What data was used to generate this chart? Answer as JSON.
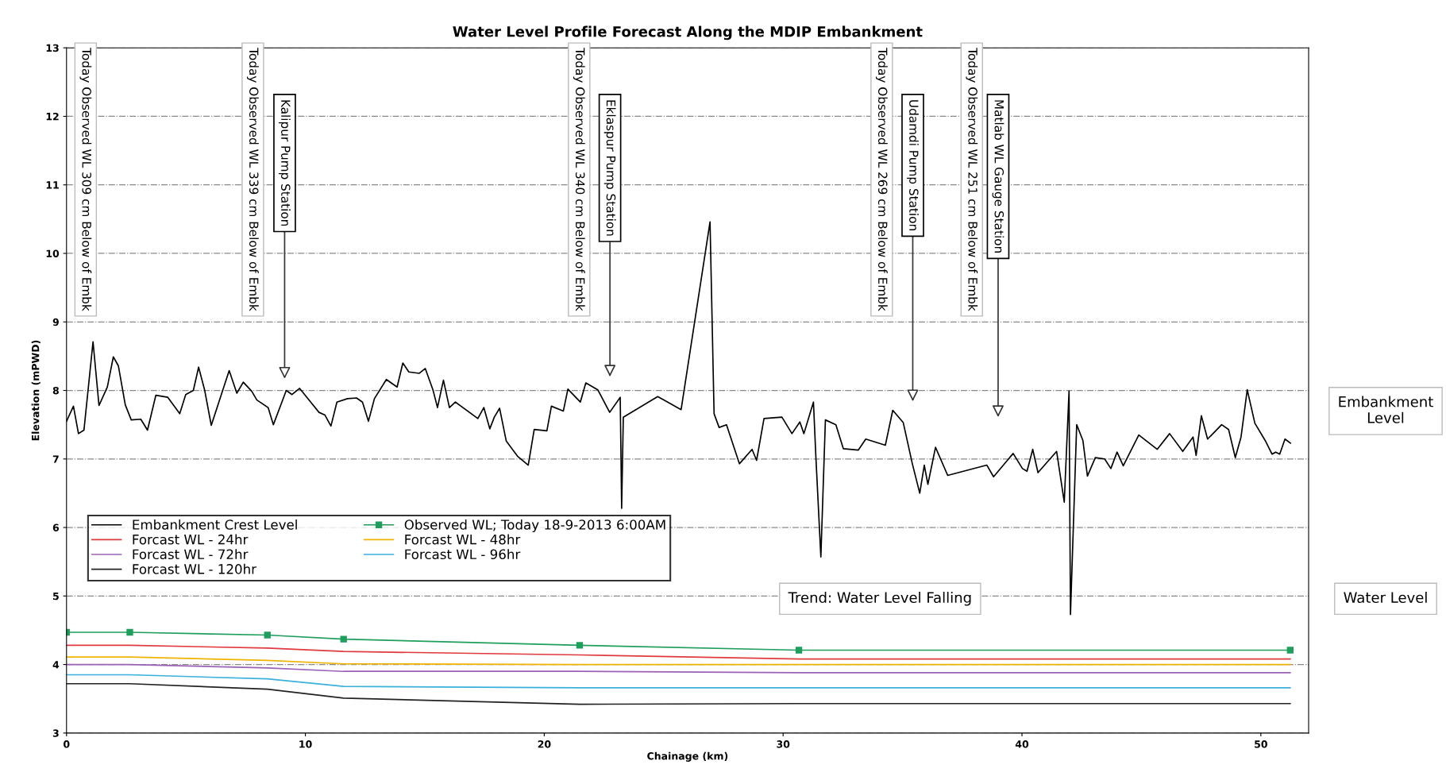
{
  "chart_data": {
    "type": "line",
    "title": "Water Level Profile Forecast Along the MDIP Embankment",
    "xlabel": "Chainage (km)",
    "ylabel": "Elevation (mPWD)",
    "xlim": [
      0,
      52
    ],
    "xticks": [
      0,
      10,
      20,
      30,
      40,
      50
    ],
    "ylim": [
      3,
      13
    ],
    "yticks": [
      3,
      4,
      5,
      6,
      7,
      8,
      9,
      10,
      11,
      12,
      13
    ],
    "grid": "y",
    "legend": "left",
    "line_style": "solid",
    "series": [
      {
        "name": "Embankment Crest Level",
        "color": "#000000",
        "x": [
          0,
          0.29,
          0.5,
          0.73,
          1.11,
          1.36,
          1.71,
          1.96,
          2.17,
          2.46,
          2.71,
          3.11,
          3.39,
          3.74,
          4.24,
          4.74,
          4.99,
          5.31,
          5.53,
          5.78,
          6.06,
          6.81,
          7.13,
          7.4,
          7.75,
          7.97,
          8.44,
          8.66,
          9.2,
          9.44,
          9.76,
          10.57,
          10.82,
          11.07,
          11.32,
          11.76,
          12.14,
          12.39,
          12.64,
          12.89,
          13.39,
          13.84,
          14.08,
          14.33,
          14.77,
          15.02,
          15.34,
          15.53,
          15.78,
          16.03,
          16.28,
          17.22,
          17.47,
          17.72,
          17.91,
          18.13,
          18.41,
          18.88,
          19.33,
          19.58,
          20.11,
          20.3,
          20.8,
          20.99,
          21.51,
          21.74,
          22.24,
          22.74,
          23.18,
          23.24,
          23.31,
          24.75,
          25.73,
          26.94,
          27.11,
          27.32,
          27.63,
          28.17,
          28.7,
          28.89,
          29.2,
          29.95,
          30.37,
          30.7,
          30.87,
          31.27,
          31.37,
          31.58,
          31.77,
          32.21,
          32.52,
          33.15,
          33.46,
          34.28,
          34.59,
          35.03,
          35.41,
          35.72,
          35.91,
          36.06,
          36.38,
          36.89,
          38.53,
          38.81,
          39.63,
          40.02,
          40.21,
          40.45,
          40.67,
          41.45,
          41.77,
          41.97,
          42.03,
          42.29,
          42.55,
          42.74,
          43.07,
          43.46,
          43.72,
          43.98,
          44.24,
          44.89,
          45.66,
          46.18,
          46.73,
          47.16,
          47.29,
          47.51,
          47.77,
          48.36,
          48.65,
          48.93,
          49.17,
          49.43,
          49.75,
          50.18,
          50.47,
          50.62,
          50.79,
          51.01,
          51.24
        ],
        "values": [
          7.55,
          7.77,
          7.37,
          7.42,
          8.71,
          7.78,
          8.05,
          8.49,
          8.36,
          7.79,
          7.57,
          7.58,
          7.42,
          7.93,
          7.9,
          7.66,
          7.94,
          8.0,
          8.34,
          8.01,
          7.49,
          8.29,
          7.96,
          8.12,
          7.99,
          7.86,
          7.75,
          7.5,
          8.0,
          7.94,
          8.03,
          7.68,
          7.64,
          7.48,
          7.83,
          7.88,
          7.89,
          7.83,
          7.55,
          7.88,
          8.16,
          8.05,
          8.4,
          8.27,
          8.25,
          8.32,
          8.01,
          7.75,
          8.15,
          7.75,
          7.83,
          7.59,
          7.75,
          7.44,
          7.61,
          7.74,
          7.26,
          7.04,
          6.91,
          7.43,
          7.41,
          7.77,
          7.7,
          8.02,
          7.83,
          8.11,
          8.01,
          7.68,
          7.9,
          6.28,
          7.61,
          7.91,
          7.72,
          10.46,
          7.66,
          7.46,
          7.5,
          6.93,
          7.14,
          6.98,
          7.59,
          7.61,
          7.37,
          7.54,
          7.37,
          7.83,
          7.04,
          5.57,
          7.57,
          7.5,
          7.15,
          7.13,
          7.29,
          7.2,
          7.71,
          7.53,
          6.93,
          6.5,
          6.91,
          6.63,
          7.17,
          6.76,
          6.91,
          6.74,
          7.08,
          6.86,
          6.82,
          7.14,
          6.8,
          7.11,
          6.37,
          7.99,
          4.73,
          7.5,
          7.27,
          6.75,
          7.02,
          7.0,
          6.86,
          7.1,
          6.9,
          7.35,
          7.14,
          7.37,
          7.11,
          7.32,
          7.05,
          7.63,
          7.29,
          7.5,
          7.43,
          7.02,
          7.32,
          8.01,
          7.52,
          7.27,
          7.07,
          7.1,
          7.07,
          7.29,
          7.23
        ]
      },
      {
        "name": "Observed WL; Today 18-9-2013 6:00AM",
        "color": "#1f9e5c",
        "marker": "square",
        "x": [
          0,
          2.65,
          8.41,
          11.6,
          21.48,
          30.66,
          51.23
        ],
        "values": [
          4.47,
          4.47,
          4.43,
          4.37,
          4.28,
          4.21,
          4.21
        ]
      },
      {
        "name": "Forcast WL - 24hr",
        "color": "#e0393e",
        "x": [
          0,
          2.65,
          8.41,
          11.6,
          21.48,
          30.66,
          51.23
        ],
        "values": [
          4.28,
          4.28,
          4.24,
          4.19,
          4.14,
          4.08,
          4.08
        ]
      },
      {
        "name": "Forcast WL - 48hr",
        "color": "#f0b400",
        "x": [
          0,
          2.65,
          8.41,
          11.6,
          21.48,
          30.66,
          51.23
        ],
        "values": [
          4.11,
          4.11,
          4.06,
          4.01,
          4.0,
          4.0,
          4.0
        ]
      },
      {
        "name": "Forcast WL - 72hr",
        "color": "#9b62b8",
        "x": [
          0,
          2.65,
          8.41,
          11.6,
          21.48,
          30.66,
          51.23
        ],
        "values": [
          4.0,
          4.0,
          3.95,
          3.9,
          3.9,
          3.88,
          3.88
        ]
      },
      {
        "name": "Forcast WL - 96hr",
        "color": "#3ab0dc",
        "x": [
          0,
          2.65,
          8.41,
          11.6,
          21.48,
          30.66,
          51.23
        ],
        "values": [
          3.85,
          3.85,
          3.79,
          3.68,
          3.66,
          3.66,
          3.66
        ]
      },
      {
        "name": "Forcast WL - 120hr",
        "color": "#222222",
        "x": [
          0,
          2.65,
          8.41,
          11.6,
          21.48,
          30.66,
          51.23
        ],
        "values": [
          3.72,
          3.72,
          3.64,
          3.51,
          3.42,
          3.43,
          3.43
        ]
      }
    ],
    "annotations": [
      "Today Observed WL 309 cm Below of Embk",
      "Today Observed WL 339 cm Below of Embk",
      "Kalipur Pump Station",
      "Today Observed WL 340 cm Below of Embk",
      "Eklaspur Pump Station",
      "Today Observed WL 269 cm Below of Embk",
      "Udamdi Pump Station",
      "Today Observed WL 251 cm Below of Embk",
      "Matlab WL Gauge Station",
      "Trend: Water Level Falling",
      "Embankment\nLevel",
      "Water Level"
    ]
  }
}
